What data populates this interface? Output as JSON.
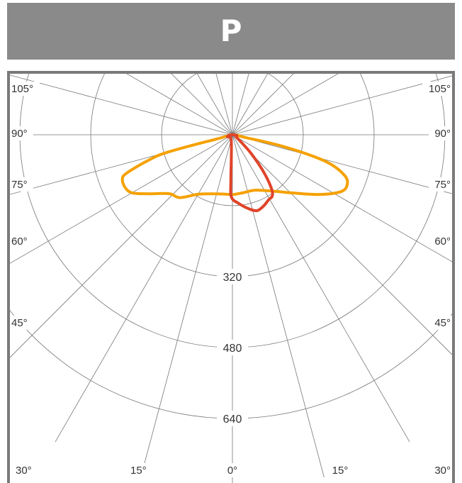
{
  "header": {
    "title": "P"
  },
  "colors": {
    "header_bg": "#8a8a8a",
    "grid": "#777777",
    "series_orange": "#f5a100",
    "series_red": "#e0442a"
  },
  "chart_data": {
    "type": "polar-line",
    "title": "P",
    "radial_axis": {
      "ticks": [
        160,
        320,
        480,
        640
      ],
      "labels_shown": [
        "320",
        "480",
        "640"
      ],
      "max": 800
    },
    "angular_axis": {
      "tick_labels_left": [
        "105°",
        "90°",
        "75°",
        "60°",
        "45°",
        "30°",
        "15°"
      ],
      "tick_labels_right": [
        "105°",
        "90°",
        "75°",
        "60°",
        "45°",
        "30°",
        "15°"
      ],
      "center_label": "0°",
      "grid_step_deg": 15
    },
    "grid": true,
    "series": [
      {
        "color": "#f5a100",
        "points": [
          {
            "theta": -75,
            "r": 30
          },
          {
            "theta": -75,
            "r": 150
          },
          {
            "theta": -73,
            "r": 200
          },
          {
            "theta": -70,
            "r": 255
          },
          {
            "theta": -68,
            "r": 268
          },
          {
            "theta": -64,
            "r": 270
          },
          {
            "theta": -60,
            "r": 262
          },
          {
            "theta": -55,
            "r": 232
          },
          {
            "theta": -47,
            "r": 195
          },
          {
            "theta": -40,
            "r": 185
          },
          {
            "theta": -30,
            "r": 155
          },
          {
            "theta": -18,
            "r": 140
          },
          {
            "theta": -8,
            "r": 135
          },
          {
            "theta": 0,
            "r": 135
          },
          {
            "theta": 10,
            "r": 133
          },
          {
            "theta": 22,
            "r": 135
          },
          {
            "theta": 35,
            "r": 155
          },
          {
            "theta": 45,
            "r": 185
          },
          {
            "theta": 55,
            "r": 235
          },
          {
            "theta": 62,
            "r": 275
          },
          {
            "theta": 66,
            "r": 283
          },
          {
            "theta": 70,
            "r": 270
          },
          {
            "theta": 74,
            "r": 220
          },
          {
            "theta": 77,
            "r": 120
          },
          {
            "theta": 78,
            "r": 30
          }
        ]
      },
      {
        "color": "#e0442a",
        "points": [
          {
            "theta": -70,
            "r": 12
          },
          {
            "theta": -10,
            "r": 15
          },
          {
            "theta": -2,
            "r": 100
          },
          {
            "theta": -1,
            "r": 140
          },
          {
            "theta": 5,
            "r": 155
          },
          {
            "theta": 12,
            "r": 170
          },
          {
            "theta": 18,
            "r": 180
          },
          {
            "theta": 24,
            "r": 175
          },
          {
            "theta": 29,
            "r": 168
          },
          {
            "theta": 33,
            "r": 165
          },
          {
            "theta": 36,
            "r": 150
          },
          {
            "theta": 40,
            "r": 110
          },
          {
            "theta": 45,
            "r": 60
          },
          {
            "theta": 50,
            "r": 25
          },
          {
            "theta": 60,
            "r": 10
          },
          {
            "theta": 80,
            "r": 10
          }
        ]
      }
    ]
  }
}
